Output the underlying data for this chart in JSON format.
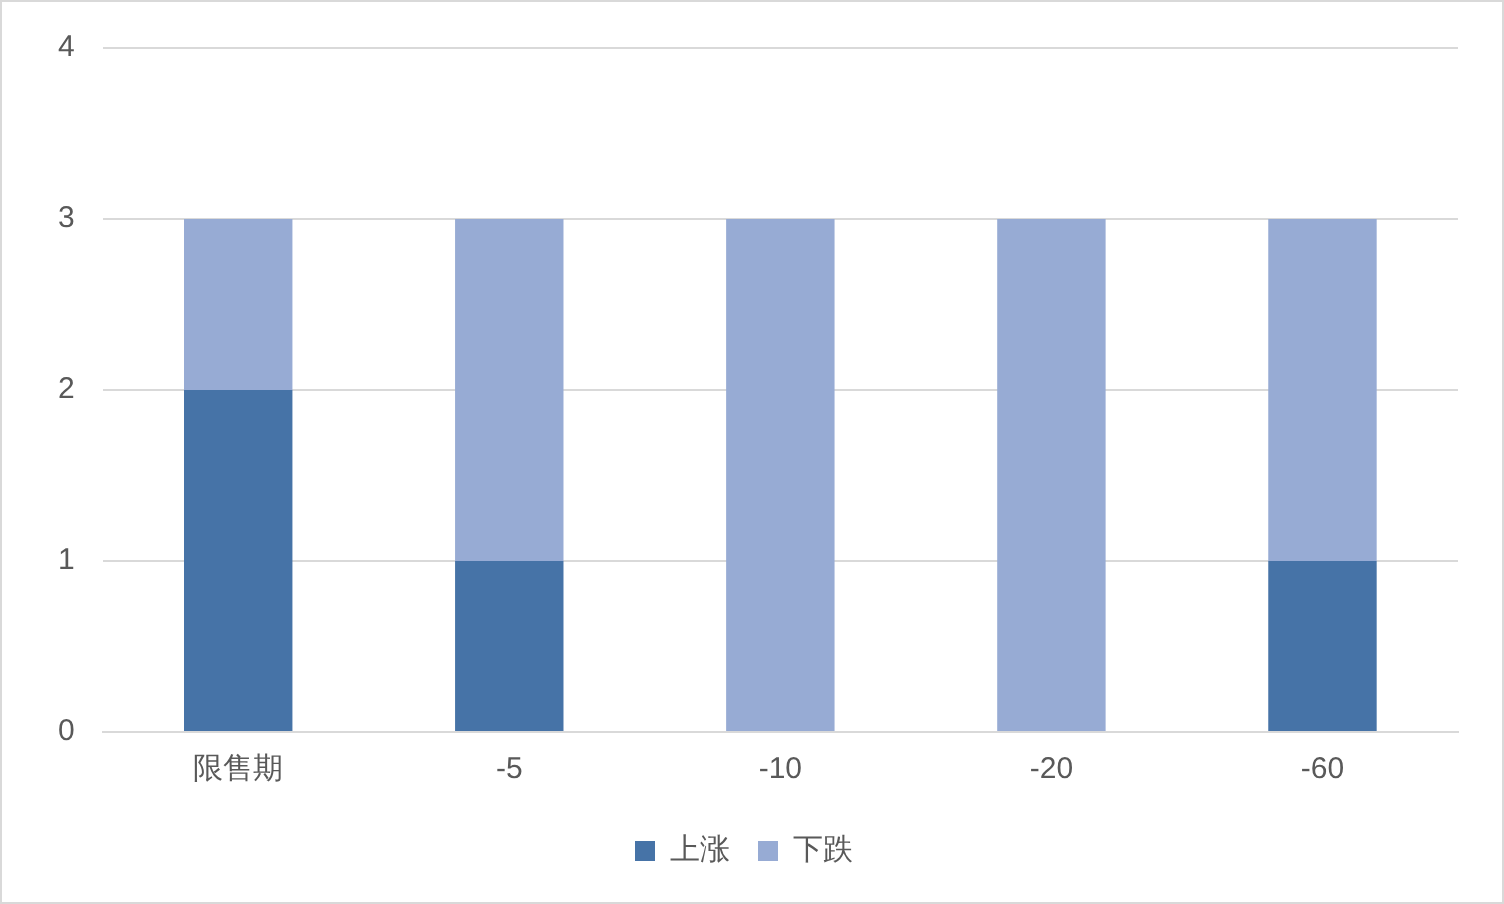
{
  "chart_data": {
    "type": "bar",
    "stacked": true,
    "categories": [
      "限售期",
      "-5",
      "-10",
      "-20",
      "-60"
    ],
    "series": [
      {
        "name": "上涨",
        "color": "#4673a7",
        "values": [
          2,
          1,
          0,
          0,
          1
        ]
      },
      {
        "name": "下跌",
        "color": "#97abd4",
        "values": [
          1,
          2,
          3,
          3,
          2
        ]
      }
    ],
    "ylim": [
      0,
      4
    ],
    "yticks": [
      0,
      1,
      2,
      3,
      4
    ],
    "grid": "y",
    "legend": "bottom"
  }
}
